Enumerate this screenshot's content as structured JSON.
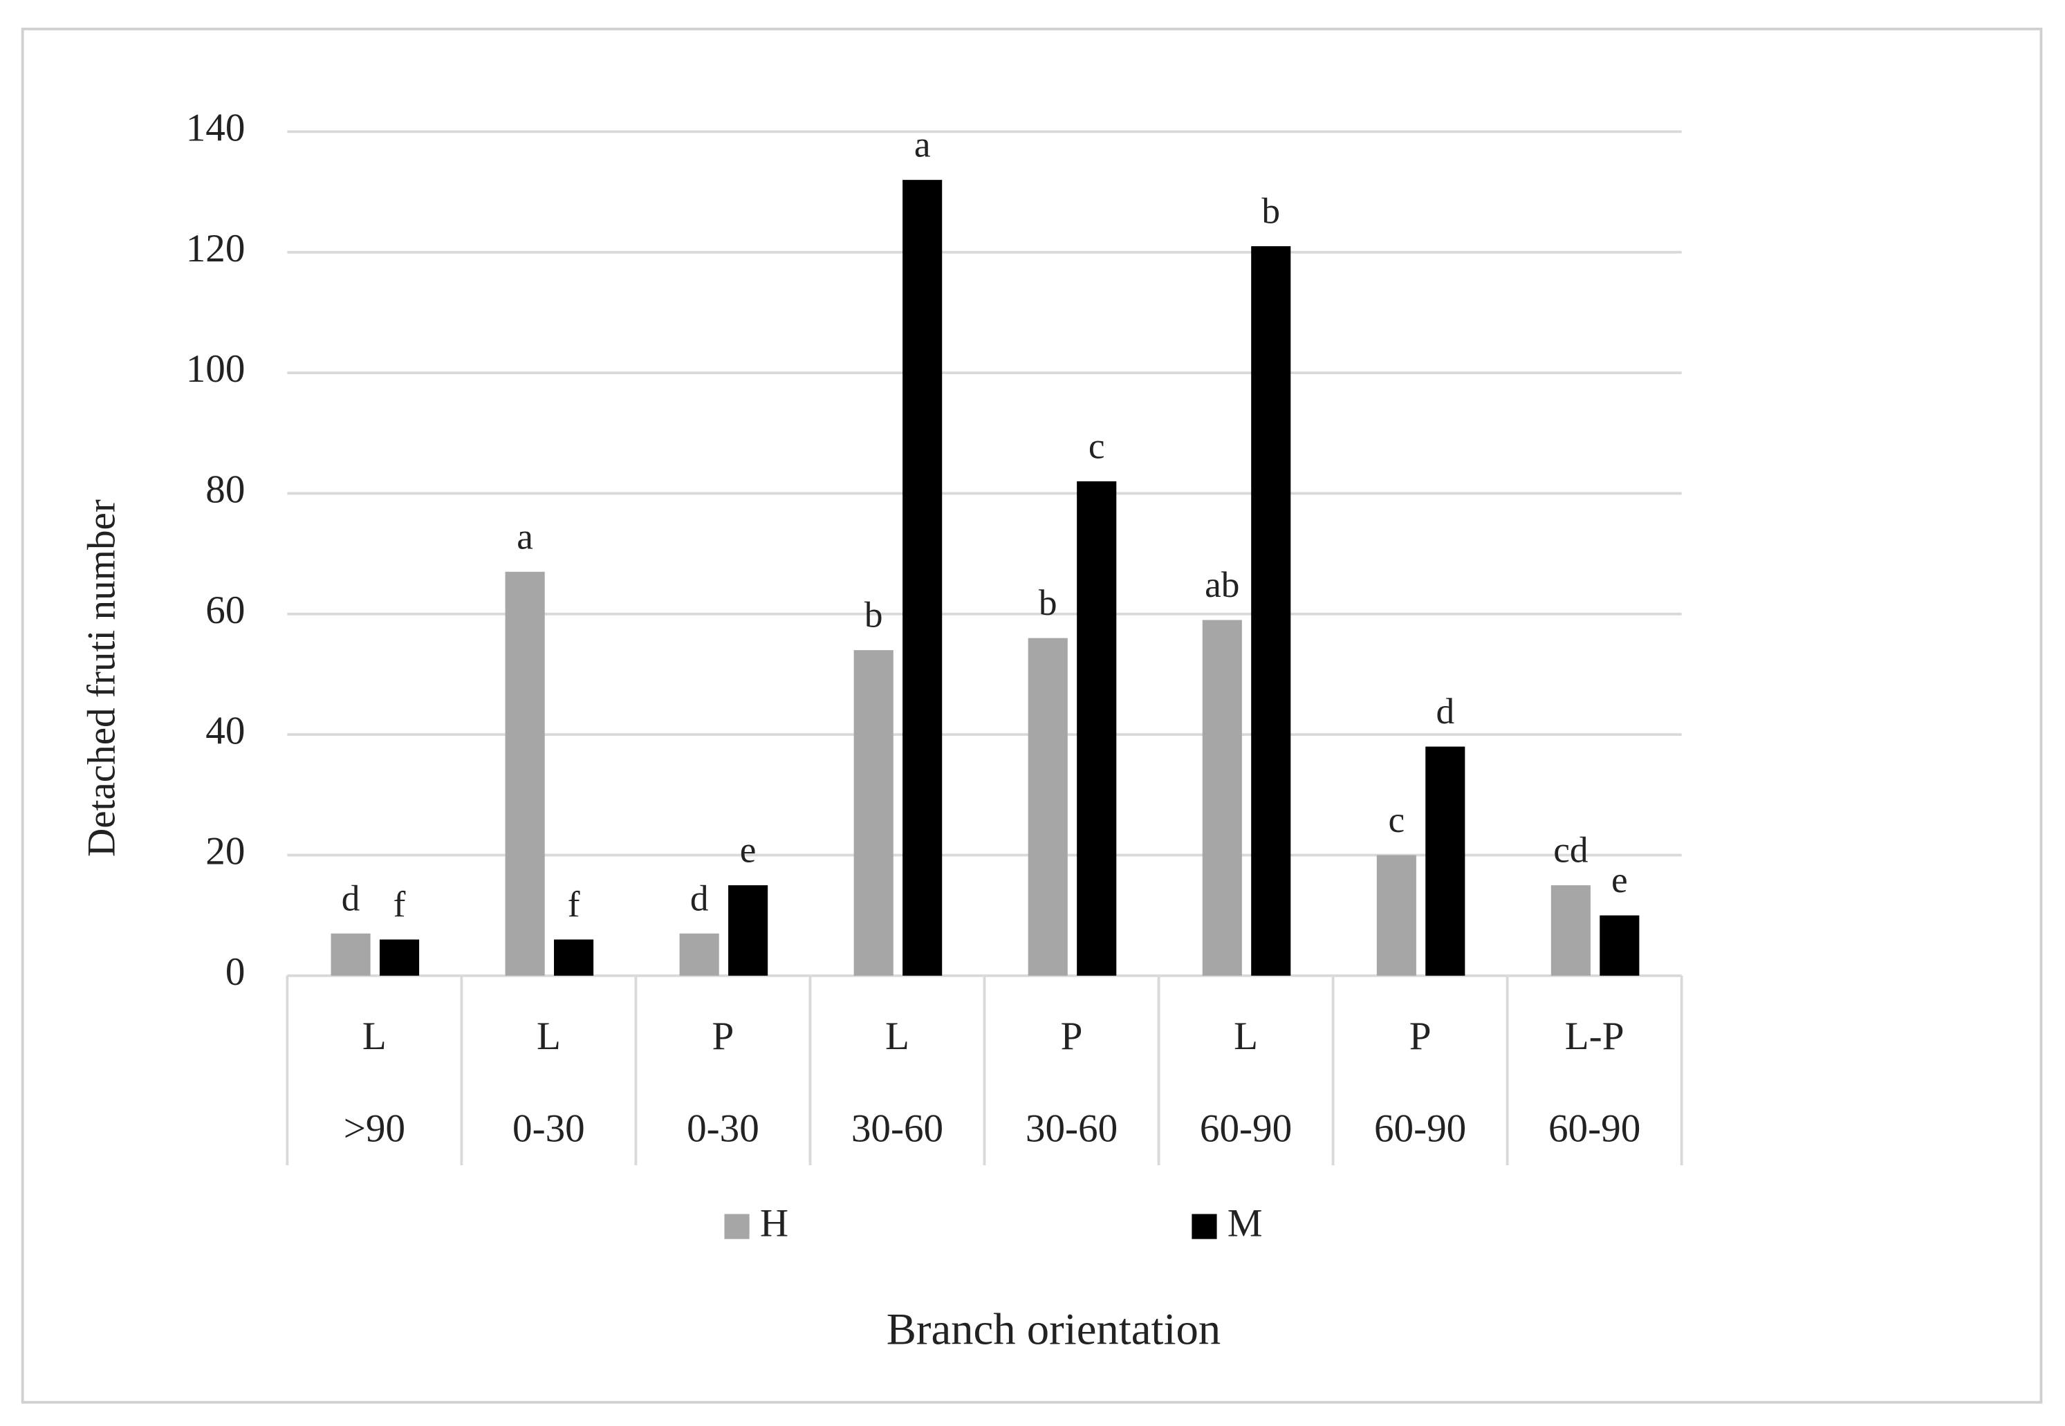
{
  "chart_data": {
    "type": "bar",
    "x_label": "Branch orientation",
    "y_label": "Detached fruti number",
    "categories": [
      "L",
      "L",
      "P",
      "L",
      "P",
      "L",
      "P",
      "L-P"
    ],
    "subcategories": [
      ">90",
      "0-30",
      "0-30",
      "30-60",
      "30-60",
      "60-90",
      "60-90",
      "60-90"
    ],
    "series": [
      {
        "name": "H",
        "color": "#a6a6a6",
        "values": [
          7,
          67,
          7,
          54,
          56,
          59,
          20,
          15
        ],
        "letters": [
          "d",
          "a",
          "d",
          "b",
          "b",
          "ab",
          "c",
          "cd"
        ]
      },
      {
        "name": "M",
        "color": "#000000",
        "values": [
          6,
          6,
          15,
          132,
          82,
          121,
          38,
          10
        ],
        "letters": [
          "f",
          "f",
          "e",
          "a",
          "c",
          "b",
          "d",
          "e"
        ]
      }
    ],
    "ylim": [
      0,
      140
    ],
    "yticks": [
      0,
      20,
      40,
      60,
      80,
      100,
      120,
      140
    ],
    "grid": true,
    "legend": "bottom"
  }
}
